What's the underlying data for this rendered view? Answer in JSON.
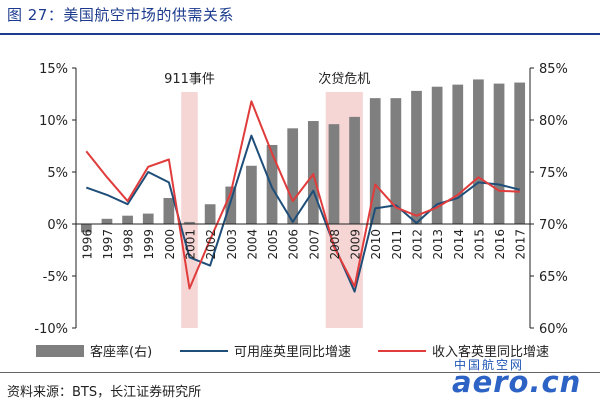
{
  "figure": {
    "title": "图 27：美国航空市场的供需关系",
    "source": "资料来源：BTS，长江证券研究所"
  },
  "watermark": {
    "chinese": "中国航空网",
    "latin": "aero.cn"
  },
  "colors": {
    "title": "#1c3b8e",
    "bar": "#7f7f7f",
    "asm_line": "#1f4e79",
    "rpm_line": "#e03c3c",
    "shade": "#f6d5d5"
  },
  "chart_data": {
    "type": "bar",
    "categories": [
      "1996",
      "1997",
      "1998",
      "1999",
      "2000",
      "2001",
      "2002",
      "2003",
      "2004",
      "2005",
      "2006",
      "2007",
      "2008",
      "2009",
      "2010",
      "2011",
      "2012",
      "2013",
      "2014",
      "2015",
      "2016",
      "2017"
    ],
    "annotations": [
      {
        "text": "911事件",
        "category": "2001"
      },
      {
        "text": "次贷危机",
        "category_range": [
          "2008",
          "2009"
        ]
      }
    ],
    "y_left": {
      "ticks": [
        "15%",
        "10%",
        "5%",
        "0%",
        "-5%",
        "-10%"
      ],
      "range": [
        -10,
        15
      ]
    },
    "y_right": {
      "ticks": [
        "85%",
        "80%",
        "75%",
        "70%",
        "65%",
        "60%"
      ],
      "range": [
        60,
        85
      ]
    },
    "grid": false,
    "legend_position": "bottom",
    "series": [
      {
        "name": "客座率(右)",
        "type": "bar",
        "axis": "right",
        "values": [
          69.2,
          70.5,
          70.8,
          71.0,
          72.5,
          70.2,
          71.9,
          73.6,
          75.6,
          77.6,
          79.2,
          79.9,
          79.6,
          80.3,
          82.1,
          82.1,
          82.8,
          83.2,
          83.4,
          83.9,
          83.5,
          83.6
        ]
      },
      {
        "name": "可用座英里同比增速",
        "type": "line",
        "axis": "left",
        "values": [
          3.5,
          2.8,
          1.9,
          5.0,
          4.0,
          -3.2,
          -4.0,
          2.2,
          8.5,
          3.5,
          0.2,
          3.2,
          -2.0,
          -6.5,
          1.5,
          1.8,
          0.1,
          1.9,
          2.5,
          4.0,
          3.8,
          3.3
        ]
      },
      {
        "name": "收入客英里同比增速",
        "type": "line",
        "axis": "left",
        "values": [
          7.0,
          4.5,
          2.2,
          5.5,
          6.2,
          -6.2,
          -1.5,
          3.0,
          11.8,
          6.8,
          2.2,
          4.8,
          -2.2,
          -6.0,
          3.8,
          1.6,
          0.8,
          1.6,
          2.8,
          4.5,
          3.2,
          3.1
        ]
      }
    ]
  }
}
